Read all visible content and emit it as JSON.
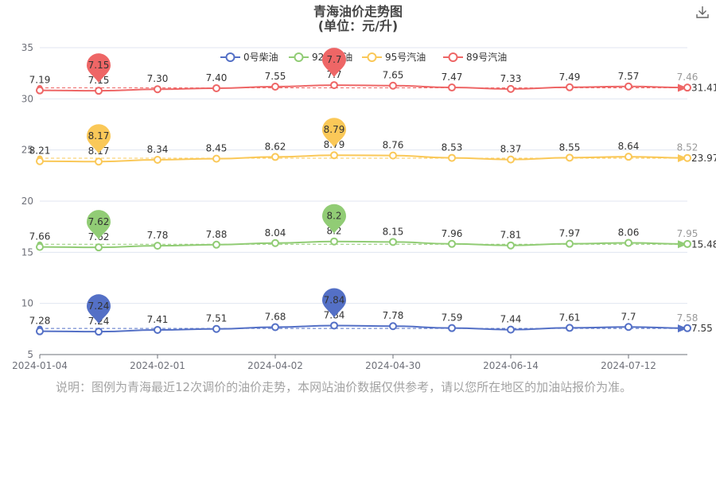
{
  "chart_data": {
    "type": "line",
    "title": "青海油价走势图",
    "subtitle": "(单位：元/升)",
    "ylim": [
      5,
      35
    ],
    "yticks": [
      5,
      10,
      15,
      20,
      25,
      30,
      35
    ],
    "xtick_labels": [
      "2024-01-04",
      "2024-02-01",
      "2024-04-02",
      "2024-04-30",
      "2024-06-14",
      "2024-07-12"
    ],
    "legend_position": "top-center",
    "grid": true,
    "series": [
      {
        "name": "0号柴油",
        "color": "#5470c6",
        "values": [
          7.28,
          7.24,
          7.41,
          7.51,
          7.68,
          7.84,
          7.78,
          7.59,
          7.44,
          7.61,
          7.7,
          7.58
        ],
        "labels": [
          "7.28",
          "7.24",
          "7.41",
          "7.51",
          "7.68",
          "7.84",
          "7.78",
          "7.59",
          "7.44",
          "7.61",
          "7.7",
          "7.58"
        ],
        "max": {
          "index": 5,
          "label": "7.84"
        },
        "min": {
          "index": 1,
          "label": "7.24"
        },
        "average": "7.55"
      },
      {
        "name": "92号汽油",
        "color": "#91cc75",
        "values": [
          7.66,
          7.62,
          7.78,
          7.88,
          8.04,
          8.2,
          8.15,
          7.96,
          7.81,
          7.97,
          8.06,
          7.95
        ],
        "labels": [
          "7.66",
          "7.62",
          "7.78",
          "7.88",
          "8.04",
          "8.2",
          "8.15",
          "7.96",
          "7.81",
          "7.97",
          "8.06",
          "7.95"
        ],
        "max": {
          "index": 5,
          "label": "8.2"
        },
        "min": {
          "index": 1,
          "label": "7.62"
        },
        "average": "15.48"
      },
      {
        "name": "95号汽油",
        "color": "#fac858",
        "values": [
          8.21,
          8.17,
          8.34,
          8.45,
          8.62,
          8.79,
          8.76,
          8.53,
          8.37,
          8.55,
          8.64,
          8.52
        ],
        "labels": [
          "8.21",
          "8.17",
          "8.34",
          "8.45",
          "8.62",
          "8.79",
          "8.76",
          "8.53",
          "8.37",
          "8.55",
          "8.64",
          "8.52"
        ],
        "max": {
          "index": 5,
          "label": "8.79"
        },
        "min": {
          "index": 1,
          "label": "8.17"
        },
        "average": "23.97"
      },
      {
        "name": "89号汽油",
        "color": "#ee6666",
        "values": [
          7.19,
          7.15,
          7.3,
          7.4,
          7.55,
          7.7,
          7.65,
          7.47,
          7.33,
          7.49,
          7.57,
          7.46
        ],
        "labels": [
          "7.19",
          "7.15",
          "7.30",
          "7.40",
          "7.55",
          "7.7",
          "7.65",
          "7.47",
          "7.33",
          "7.49",
          "7.57",
          "7.46"
        ],
        "max": {
          "index": 5,
          "label": "7.7"
        },
        "min": {
          "index": 1,
          "label": "7.15"
        },
        "average": "31.41"
      }
    ]
  },
  "note": "说明：图例为青海最近12次调价的油价走势，本网站油价数据仅供参考，请以您所在地区的加油站报价为准。",
  "toolbar": {
    "download_icon": "download-icon"
  }
}
